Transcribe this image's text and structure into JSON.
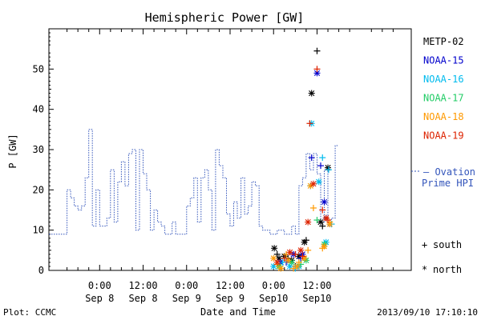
{
  "footer": {
    "left": "Plot: CCMC",
    "right": "2013/09/10 17:10:10"
  },
  "side": {
    "ovation_line1": "— Ovation",
    "ovation_line2": "Prime HPI",
    "south_symbol": "+",
    "south_label": "south",
    "north_symbol": "*",
    "north_label": "north"
  },
  "chart_data": {
    "type": "line",
    "title": "Hemispheric Power [GW]",
    "xlabel": "Date and Time",
    "ylabel": "P [GW]",
    "ylim": [
      0,
      60
    ],
    "xlim": [
      -14,
      86
    ],
    "x_unit": "hours from Sep 8 00:00 UT",
    "y_ticks": [
      0,
      10,
      20,
      30,
      40,
      50
    ],
    "x_ticks": [
      {
        "x": 0,
        "top": "0:00",
        "bottom": "Sep 8"
      },
      {
        "x": 12,
        "top": "12:00",
        "bottom": "Sep 8"
      },
      {
        "x": 24,
        "top": "0:00",
        "bottom": "Sep 9"
      },
      {
        "x": 36,
        "top": "12:00",
        "bottom": "Sep 9"
      },
      {
        "x": 48,
        "top": "0:00",
        "bottom": "Sep10"
      },
      {
        "x": 60,
        "top": "12:00",
        "bottom": "Sep10"
      }
    ],
    "grid": false,
    "legend_position": "right",
    "colors": {
      "METP-02": "#000000",
      "NOAA-15": "#0000cc",
      "NOAA-16": "#00bbee",
      "NOAA-17": "#22cc66",
      "NOAA-18": "#ff9900",
      "NOAA-19": "#dd2200",
      "ovation": "#3355bb"
    },
    "legend": [
      {
        "name": "METP-02",
        "color": "#000000"
      },
      {
        "name": "NOAA-15",
        "color": "#0000cc"
      },
      {
        "name": "NOAA-16",
        "color": "#00bbee"
      },
      {
        "name": "NOAA-17",
        "color": "#22cc66"
      },
      {
        "name": "NOAA-18",
        "color": "#ff9900"
      },
      {
        "name": "NOAA-19",
        "color": "#dd2200"
      }
    ],
    "ovation_series": [
      [
        -14,
        9
      ],
      [
        -9,
        9
      ],
      [
        -9,
        20
      ],
      [
        -8,
        20
      ],
      [
        -8,
        18
      ],
      [
        -7,
        18
      ],
      [
        -7,
        16
      ],
      [
        -6,
        16
      ],
      [
        -6,
        15
      ],
      [
        -5,
        15
      ],
      [
        -5,
        16
      ],
      [
        -4,
        16
      ],
      [
        -4,
        23
      ],
      [
        -3,
        23
      ],
      [
        -3,
        35
      ],
      [
        -2,
        35
      ],
      [
        -2,
        11
      ],
      [
        -1,
        11
      ],
      [
        -1,
        20
      ],
      [
        0,
        20
      ],
      [
        0,
        11
      ],
      [
        1,
        11
      ],
      [
        1,
        11
      ],
      [
        2,
        11
      ],
      [
        2,
        13
      ],
      [
        3,
        13
      ],
      [
        3,
        25
      ],
      [
        4,
        25
      ],
      [
        4,
        12
      ],
      [
        5,
        12
      ],
      [
        5,
        22
      ],
      [
        6,
        22
      ],
      [
        6,
        27
      ],
      [
        7,
        27
      ],
      [
        7,
        21
      ],
      [
        8,
        21
      ],
      [
        8,
        29
      ],
      [
        9,
        29
      ],
      [
        9,
        30
      ],
      [
        10,
        30
      ],
      [
        10,
        10
      ],
      [
        11,
        10
      ],
      [
        11,
        30
      ],
      [
        12,
        30
      ],
      [
        12,
        24
      ],
      [
        13,
        24
      ],
      [
        13,
        20
      ],
      [
        14,
        20
      ],
      [
        14,
        10
      ],
      [
        15,
        10
      ],
      [
        15,
        15
      ],
      [
        16,
        15
      ],
      [
        16,
        12
      ],
      [
        17,
        12
      ],
      [
        17,
        11
      ],
      [
        18,
        11
      ],
      [
        18,
        9
      ],
      [
        20,
        9
      ],
      [
        20,
        12
      ],
      [
        21,
        12
      ],
      [
        21,
        9
      ],
      [
        24,
        9
      ],
      [
        24,
        16
      ],
      [
        25,
        16
      ],
      [
        25,
        18
      ],
      [
        26,
        18
      ],
      [
        26,
        23
      ],
      [
        27,
        23
      ],
      [
        27,
        12
      ],
      [
        28,
        12
      ],
      [
        28,
        23
      ],
      [
        29,
        23
      ],
      [
        29,
        25
      ],
      [
        30,
        25
      ],
      [
        30,
        20
      ],
      [
        31,
        20
      ],
      [
        31,
        10
      ],
      [
        32,
        10
      ],
      [
        32,
        30
      ],
      [
        33,
        30
      ],
      [
        33,
        26
      ],
      [
        34,
        26
      ],
      [
        34,
        23
      ],
      [
        35,
        23
      ],
      [
        35,
        14
      ],
      [
        36,
        14
      ],
      [
        36,
        11
      ],
      [
        37,
        11
      ],
      [
        37,
        17
      ],
      [
        38,
        17
      ],
      [
        38,
        13
      ],
      [
        39,
        13
      ],
      [
        39,
        23
      ],
      [
        40,
        23
      ],
      [
        40,
        14
      ],
      [
        41,
        14
      ],
      [
        41,
        16
      ],
      [
        42,
        16
      ],
      [
        42,
        22
      ],
      [
        43,
        22
      ],
      [
        43,
        21
      ],
      [
        44,
        21
      ],
      [
        44,
        11
      ],
      [
        45,
        11
      ],
      [
        45,
        10
      ],
      [
        47,
        10
      ],
      [
        47,
        9
      ],
      [
        49,
        9
      ],
      [
        49,
        10
      ],
      [
        51,
        10
      ],
      [
        51,
        9
      ],
      [
        53,
        9
      ],
      [
        53,
        11
      ],
      [
        54,
        11
      ],
      [
        54,
        9
      ],
      [
        55,
        9
      ],
      [
        55,
        21
      ],
      [
        56,
        21
      ],
      [
        56,
        23
      ],
      [
        57,
        23
      ],
      [
        57,
        29
      ],
      [
        58,
        29
      ],
      [
        58,
        25
      ],
      [
        59,
        25
      ],
      [
        59,
        29
      ],
      [
        60,
        29
      ],
      [
        60,
        24
      ],
      [
        61,
        24
      ],
      [
        61,
        12
      ],
      [
        62,
        12
      ],
      [
        62,
        25
      ],
      [
        63,
        25
      ],
      [
        63,
        11
      ],
      [
        64,
        11
      ],
      [
        64,
        13
      ],
      [
        65,
        13
      ],
      [
        65,
        31
      ],
      [
        66,
        31
      ]
    ],
    "satellite_points": [
      {
        "sat": "METP-02",
        "hem": "north",
        "x": 48.2,
        "y": 5.5
      },
      {
        "sat": "METP-02",
        "hem": "north",
        "x": 49.5,
        "y": 3
      },
      {
        "sat": "METP-02",
        "hem": "north",
        "x": 51,
        "y": 3.5
      },
      {
        "sat": "METP-02",
        "hem": "north",
        "x": 53,
        "y": 2.5
      },
      {
        "sat": "METP-02",
        "hem": "north",
        "x": 55,
        "y": 3.5
      },
      {
        "sat": "METP-02",
        "hem": "north",
        "x": 56.5,
        "y": 7
      },
      {
        "sat": "METP-02",
        "hem": "north",
        "x": 58.5,
        "y": 44
      },
      {
        "sat": "METP-02",
        "hem": "north",
        "x": 61,
        "y": 12
      },
      {
        "sat": "METP-02",
        "hem": "north",
        "x": 63,
        "y": 25.5
      },
      {
        "sat": "METP-02",
        "hem": "south",
        "x": 49,
        "y": 4
      },
      {
        "sat": "METP-02",
        "hem": "south",
        "x": 52,
        "y": 3
      },
      {
        "sat": "METP-02",
        "hem": "south",
        "x": 54,
        "y": 1
      },
      {
        "sat": "METP-02",
        "hem": "south",
        "x": 57,
        "y": 7.5
      },
      {
        "sat": "METP-02",
        "hem": "south",
        "x": 60,
        "y": 54.5
      },
      {
        "sat": "METP-02",
        "hem": "south",
        "x": 61.5,
        "y": 11
      },
      {
        "sat": "NOAA-15",
        "hem": "north",
        "x": 50,
        "y": 2
      },
      {
        "sat": "NOAA-15",
        "hem": "north",
        "x": 53.5,
        "y": 4
      },
      {
        "sat": "NOAA-15",
        "hem": "north",
        "x": 56,
        "y": 4
      },
      {
        "sat": "NOAA-15",
        "hem": "north",
        "x": 60,
        "y": 49
      },
      {
        "sat": "NOAA-15",
        "hem": "north",
        "x": 62,
        "y": 17
      },
      {
        "sat": "NOAA-15",
        "hem": "south",
        "x": 51.5,
        "y": 2
      },
      {
        "sat": "NOAA-15",
        "hem": "south",
        "x": 55.5,
        "y": 3
      },
      {
        "sat": "NOAA-15",
        "hem": "south",
        "x": 58.5,
        "y": 28
      },
      {
        "sat": "NOAA-15",
        "hem": "south",
        "x": 61,
        "y": 26
      },
      {
        "sat": "NOAA-15",
        "hem": "south",
        "x": 62.5,
        "y": 13
      },
      {
        "sat": "NOAA-16",
        "hem": "north",
        "x": 48,
        "y": 1
      },
      {
        "sat": "NOAA-16",
        "hem": "north",
        "x": 52.5,
        "y": 1
      },
      {
        "sat": "NOAA-16",
        "hem": "north",
        "x": 55,
        "y": 1
      },
      {
        "sat": "NOAA-16",
        "hem": "north",
        "x": 58.5,
        "y": 36.5
      },
      {
        "sat": "NOAA-16",
        "hem": "north",
        "x": 60.5,
        "y": 22
      },
      {
        "sat": "NOAA-16",
        "hem": "north",
        "x": 62.5,
        "y": 7
      },
      {
        "sat": "NOAA-16",
        "hem": "south",
        "x": 50.5,
        "y": 2
      },
      {
        "sat": "NOAA-16",
        "hem": "south",
        "x": 54,
        "y": 0.5
      },
      {
        "sat": "NOAA-16",
        "hem": "south",
        "x": 58.2,
        "y": 21
      },
      {
        "sat": "NOAA-16",
        "hem": "south",
        "x": 61.5,
        "y": 28
      },
      {
        "sat": "NOAA-16",
        "hem": "south",
        "x": 63.2,
        "y": 25
      },
      {
        "sat": "NOAA-16",
        "hem": "south",
        "x": 64,
        "y": 11.5
      },
      {
        "sat": "NOAA-17",
        "hem": "north",
        "x": 49.5,
        "y": 1
      },
      {
        "sat": "NOAA-17",
        "hem": "north",
        "x": 53,
        "y": 2
      },
      {
        "sat": "NOAA-17",
        "hem": "north",
        "x": 57,
        "y": 2.5
      },
      {
        "sat": "NOAA-17",
        "hem": "north",
        "x": 62,
        "y": 6.5
      },
      {
        "sat": "NOAA-17",
        "hem": "south",
        "x": 51,
        "y": 3
      },
      {
        "sat": "NOAA-17",
        "hem": "south",
        "x": 55.5,
        "y": 1.5
      },
      {
        "sat": "NOAA-17",
        "hem": "south",
        "x": 60,
        "y": 12.5
      },
      {
        "sat": "NOAA-18",
        "hem": "north",
        "x": 48,
        "y": 3
      },
      {
        "sat": "NOAA-18",
        "hem": "north",
        "x": 50,
        "y": 0.5
      },
      {
        "sat": "NOAA-18",
        "hem": "north",
        "x": 52,
        "y": 2.5
      },
      {
        "sat": "NOAA-18",
        "hem": "north",
        "x": 54.5,
        "y": 1
      },
      {
        "sat": "NOAA-18",
        "hem": "north",
        "x": 56.5,
        "y": 3
      },
      {
        "sat": "NOAA-18",
        "hem": "north",
        "x": 58.2,
        "y": 21
      },
      {
        "sat": "NOAA-18",
        "hem": "north",
        "x": 62,
        "y": 6
      },
      {
        "sat": "NOAA-18",
        "hem": "north",
        "x": 63.5,
        "y": 11.5
      },
      {
        "sat": "NOAA-18",
        "hem": "south",
        "x": 49,
        "y": 1.5
      },
      {
        "sat": "NOAA-18",
        "hem": "south",
        "x": 51.5,
        "y": 4
      },
      {
        "sat": "NOAA-18",
        "hem": "south",
        "x": 53.5,
        "y": 0.5
      },
      {
        "sat": "NOAA-18",
        "hem": "south",
        "x": 55,
        "y": 2
      },
      {
        "sat": "NOAA-18",
        "hem": "south",
        "x": 57.5,
        "y": 5
      },
      {
        "sat": "NOAA-18",
        "hem": "south",
        "x": 59,
        "y": 15.5
      },
      {
        "sat": "NOAA-18",
        "hem": "south",
        "x": 61.5,
        "y": 5.5
      },
      {
        "sat": "NOAA-18",
        "hem": "south",
        "x": 63.5,
        "y": 12
      },
      {
        "sat": "NOAA-19",
        "hem": "north",
        "x": 49,
        "y": 2
      },
      {
        "sat": "NOAA-19",
        "hem": "north",
        "x": 52.5,
        "y": 4.5
      },
      {
        "sat": "NOAA-19",
        "hem": "north",
        "x": 55.5,
        "y": 5
      },
      {
        "sat": "NOAA-19",
        "hem": "north",
        "x": 57.5,
        "y": 12
      },
      {
        "sat": "NOAA-19",
        "hem": "north",
        "x": 59,
        "y": 21.5
      },
      {
        "sat": "NOAA-19",
        "hem": "north",
        "x": 62.5,
        "y": 13
      },
      {
        "sat": "NOAA-19",
        "hem": "south",
        "x": 51,
        "y": 3
      },
      {
        "sat": "NOAA-19",
        "hem": "south",
        "x": 54,
        "y": 4
      },
      {
        "sat": "NOAA-19",
        "hem": "south",
        "x": 56,
        "y": 3.5
      },
      {
        "sat": "NOAA-19",
        "hem": "south",
        "x": 58,
        "y": 36.5
      },
      {
        "sat": "NOAA-19",
        "hem": "south",
        "x": 60,
        "y": 50
      },
      {
        "sat": "NOAA-19",
        "hem": "south",
        "x": 61.5,
        "y": 15
      },
      {
        "sat": "NOAA-19",
        "hem": "south",
        "x": 63,
        "y": 12.5
      }
    ]
  }
}
